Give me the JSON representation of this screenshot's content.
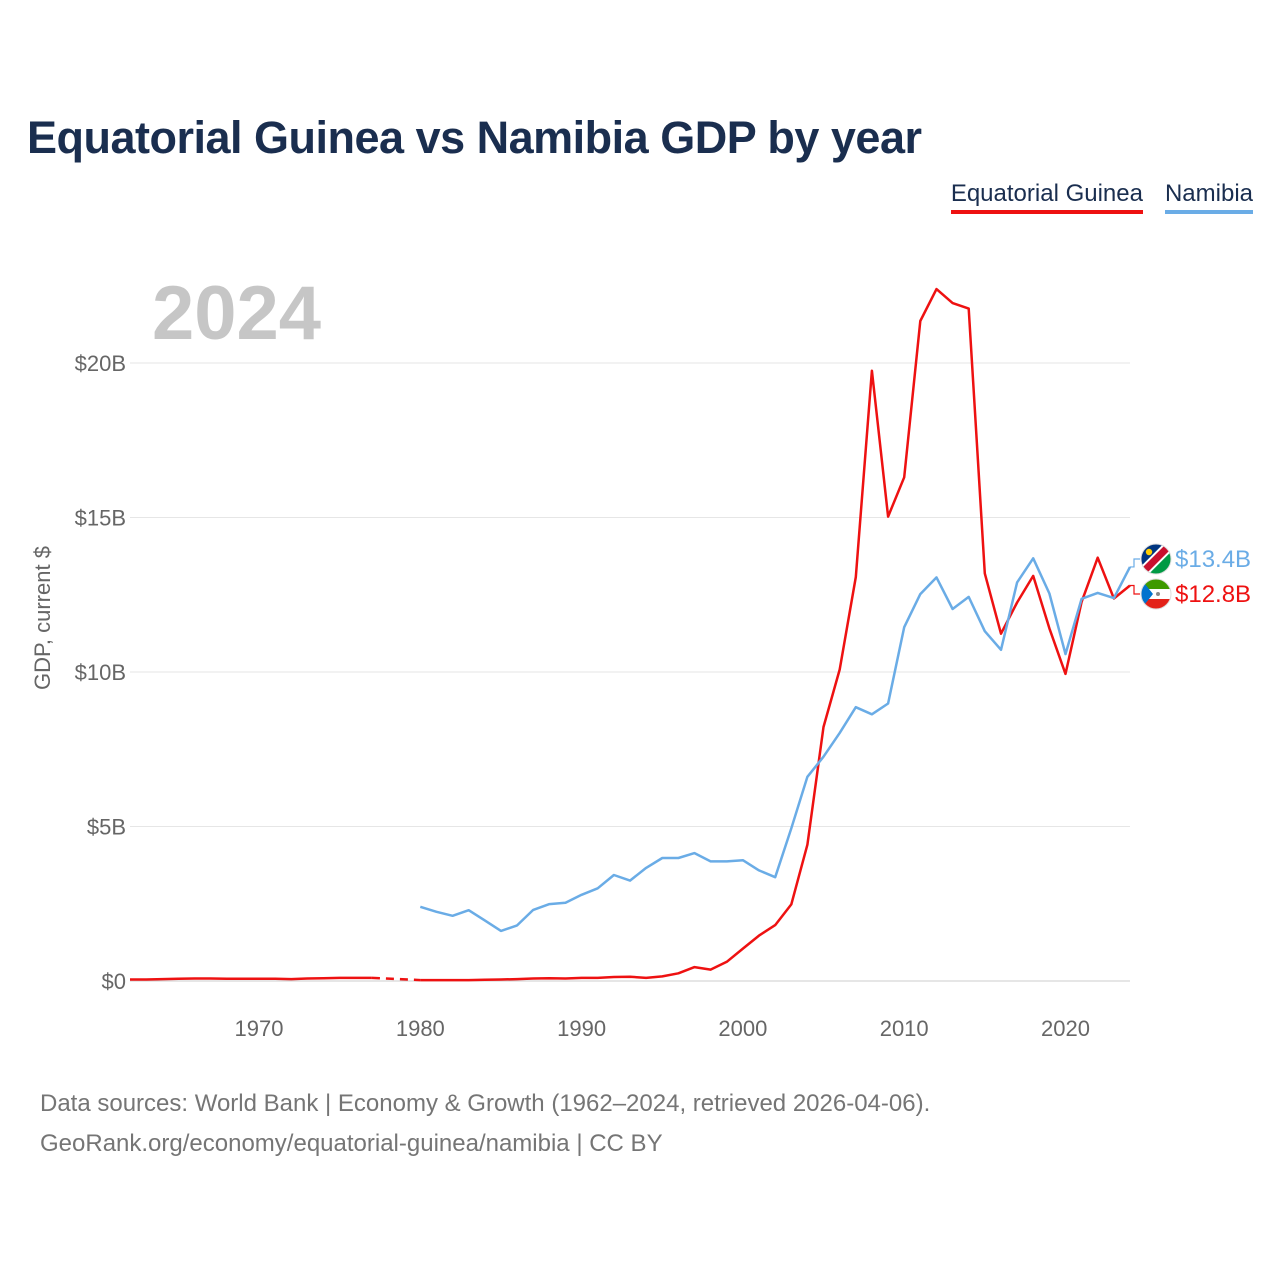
{
  "header": {
    "title": "Equatorial Guinea vs Namibia GDP by year"
  },
  "legend": {
    "items": [
      {
        "label": "Equatorial Guinea",
        "color": "#ee1111"
      },
      {
        "label": "Namibia",
        "color": "#6aace6"
      }
    ]
  },
  "footer": {
    "line1": "Data sources: World Bank | Economy & Growth (1962–2024, retrieved 2026-04-06).",
    "line2": "GeoRank.org/economy/equatorial-guinea/namibia | CC BY"
  },
  "chart_data": {
    "type": "line",
    "title": "Equatorial Guinea vs Namibia GDP by year",
    "current_year_label": "2024",
    "ylabel": "GDP, current $",
    "xlabel": "",
    "xlim": [
      1962,
      2024
    ],
    "ylim": [
      0,
      22
    ],
    "grid": true,
    "x_ticks": [
      1970,
      1980,
      1990,
      2000,
      2010,
      2020
    ],
    "x_tick_labels": [
      "1970",
      "1980",
      "1990",
      "2000",
      "2010",
      "2020"
    ],
    "y_ticks": [
      0,
      5,
      10,
      15,
      20
    ],
    "y_tick_labels": [
      "$0",
      "$5B",
      "$10B",
      "$15B",
      "$20B"
    ],
    "units": "billions of current US$",
    "gap": {
      "series": "Equatorial Guinea",
      "from": 1977,
      "to": 1980
    },
    "series": [
      {
        "name": "Equatorial Guinea",
        "color": "#ee1111",
        "end_label": "$12.8B",
        "flag": "equatorial-guinea-flag-icon",
        "x": [
          1962,
          1963,
          1964,
          1965,
          1966,
          1967,
          1968,
          1969,
          1970,
          1971,
          1972,
          1973,
          1974,
          1975,
          1976,
          1977,
          1980,
          1981,
          1982,
          1983,
          1984,
          1985,
          1986,
          1987,
          1988,
          1989,
          1990,
          1991,
          1992,
          1993,
          1994,
          1995,
          1996,
          1997,
          1998,
          1999,
          2000,
          2001,
          2002,
          2003,
          2004,
          2005,
          2006,
          2007,
          2008,
          2009,
          2010,
          2011,
          2012,
          2013,
          2014,
          2015,
          2016,
          2017,
          2018,
          2019,
          2020,
          2021,
          2022,
          2023,
          2024
        ],
        "values": [
          0.05,
          0.05,
          0.06,
          0.07,
          0.08,
          0.08,
          0.07,
          0.07,
          0.07,
          0.07,
          0.06,
          0.08,
          0.09,
          0.1,
          0.1,
          0.1,
          0.03,
          0.03,
          0.03,
          0.03,
          0.04,
          0.05,
          0.06,
          0.08,
          0.09,
          0.08,
          0.1,
          0.1,
          0.13,
          0.14,
          0.1,
          0.15,
          0.25,
          0.45,
          0.37,
          0.62,
          1.05,
          1.47,
          1.81,
          2.48,
          4.41,
          8.22,
          10.08,
          13.07,
          19.75,
          15.03,
          16.3,
          21.36,
          22.39,
          21.94,
          21.76,
          13.19,
          11.24,
          12.25,
          13.11,
          11.41,
          9.94,
          12.27,
          13.7,
          12.38,
          12.8
        ]
      },
      {
        "name": "Namibia",
        "color": "#6aace6",
        "end_label": "$13.4B",
        "flag": "namibia-flag-icon",
        "x": [
          1980,
          1981,
          1982,
          1983,
          1984,
          1985,
          1986,
          1987,
          1988,
          1989,
          1990,
          1991,
          1992,
          1993,
          1994,
          1995,
          1996,
          1997,
          1998,
          1999,
          2000,
          2001,
          2002,
          2003,
          2004,
          2005,
          2006,
          2007,
          2008,
          2009,
          2010,
          2011,
          2012,
          2013,
          2014,
          2015,
          2016,
          2017,
          2018,
          2019,
          2020,
          2021,
          2022,
          2023,
          2024
        ],
        "values": [
          2.4,
          2.24,
          2.11,
          2.29,
          1.96,
          1.62,
          1.8,
          2.3,
          2.49,
          2.53,
          2.79,
          3.0,
          3.43,
          3.25,
          3.66,
          3.98,
          3.98,
          4.14,
          3.87,
          3.87,
          3.91,
          3.58,
          3.36,
          4.94,
          6.61,
          7.26,
          8.03,
          8.86,
          8.63,
          8.98,
          11.45,
          12.52,
          13.06,
          12.04,
          12.43,
          11.32,
          10.72,
          12.9,
          13.68,
          12.54,
          10.58,
          12.37,
          12.56,
          12.39,
          13.4
        ]
      }
    ]
  }
}
